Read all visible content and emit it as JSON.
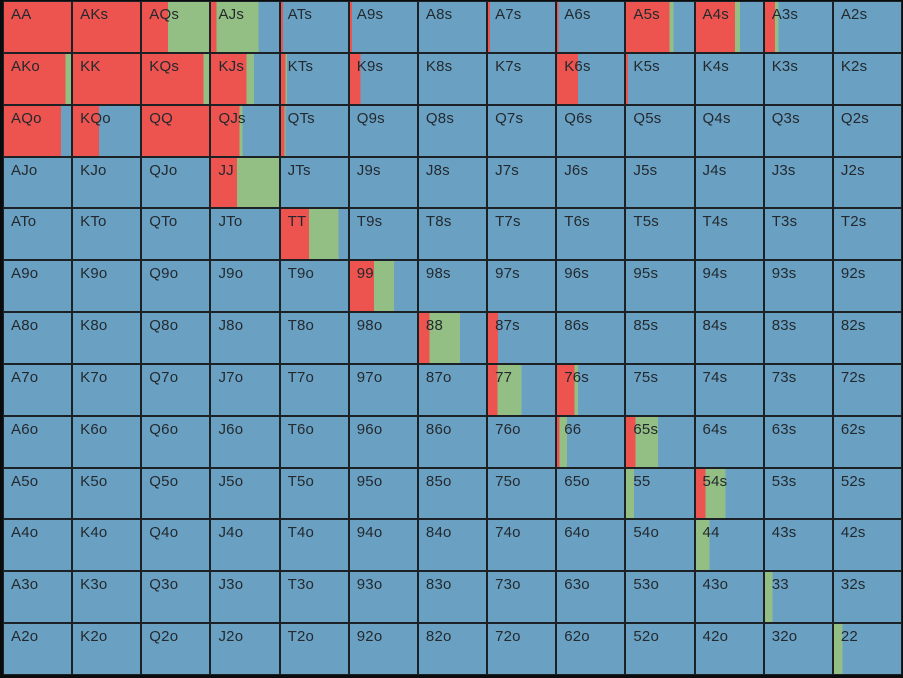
{
  "app": {
    "description": "13x13 poker starting-hand range matrix; each cell background is split left-to-right into raise (red), call (green) and fold (blue) portions"
  },
  "chart_data": {
    "type": "heatmap",
    "title": "",
    "grid": "13x13 poker hand matrix (pairs on diagonal, suited above, offsuit below)",
    "actions": [
      "raise",
      "call",
      "fold"
    ],
    "colors": {
      "raise": "#ed534f",
      "call": "#94bf84",
      "fold": "#6aa1c3"
    },
    "grid_line_color": "#1c2126",
    "cell_format": [
      "hand",
      "raise_pct",
      "call_pct",
      "fold_pct"
    ],
    "rows": [
      [
        [
          "AA",
          100,
          0,
          0
        ],
        [
          "AKs",
          100,
          0,
          0
        ],
        [
          "AQs",
          39,
          61,
          0
        ],
        [
          "AJs",
          8,
          62,
          30
        ],
        [
          "ATs",
          3,
          0,
          97
        ],
        [
          "A9s",
          3,
          0,
          97
        ],
        [
          "A8s",
          0,
          0,
          100
        ],
        [
          "A7s",
          3,
          0,
          97
        ],
        [
          "A6s",
          2,
          0,
          98
        ],
        [
          "A5s",
          64,
          6,
          30
        ],
        [
          "A4s",
          58,
          8,
          34
        ],
        [
          "A3s",
          15,
          5,
          80
        ],
        [
          "A2s",
          0,
          0,
          100
        ]
      ],
      [
        [
          "AKo",
          92,
          8,
          0
        ],
        [
          "KK",
          100,
          0,
          0
        ],
        [
          "KQs",
          92,
          8,
          0
        ],
        [
          "KJs",
          52,
          11,
          37
        ],
        [
          "KTs",
          7,
          2,
          91
        ],
        [
          "K9s",
          16,
          0,
          84
        ],
        [
          "K8s",
          0,
          0,
          100
        ],
        [
          "K7s",
          0,
          0,
          100
        ],
        [
          "K6s",
          31,
          0,
          69
        ],
        [
          "K5s",
          3,
          0,
          97
        ],
        [
          "K4s",
          0,
          0,
          100
        ],
        [
          "K3s",
          0,
          0,
          100
        ],
        [
          "K2s",
          0,
          0,
          100
        ]
      ],
      [
        [
          "AQo",
          85,
          0,
          15
        ],
        [
          "KQo",
          39,
          0,
          61
        ],
        [
          "QQ",
          100,
          0,
          0
        ],
        [
          "QJs",
          42,
          4,
          54
        ],
        [
          "QTs",
          5,
          2,
          93
        ],
        [
          "Q9s",
          0,
          0,
          100
        ],
        [
          "Q8s",
          0,
          0,
          100
        ],
        [
          "Q7s",
          0,
          0,
          100
        ],
        [
          "Q6s",
          0,
          0,
          100
        ],
        [
          "Q5s",
          0,
          0,
          100
        ],
        [
          "Q4s",
          0,
          0,
          100
        ],
        [
          "Q3s",
          0,
          0,
          100
        ],
        [
          "Q2s",
          0,
          0,
          100
        ]
      ],
      [
        [
          "AJo",
          0,
          0,
          100
        ],
        [
          "KJo",
          0,
          0,
          100
        ],
        [
          "QJo",
          0,
          0,
          100
        ],
        [
          "JJ",
          38,
          62,
          0
        ],
        [
          "JTs",
          0,
          0,
          100
        ],
        [
          "J9s",
          0,
          0,
          100
        ],
        [
          "J8s",
          0,
          0,
          100
        ],
        [
          "J7s",
          0,
          0,
          100
        ],
        [
          "J6s",
          0,
          0,
          100
        ],
        [
          "J5s",
          0,
          0,
          100
        ],
        [
          "J4s",
          0,
          0,
          100
        ],
        [
          "J3s",
          0,
          0,
          100
        ],
        [
          "J2s",
          0,
          0,
          100
        ]
      ],
      [
        [
          "ATo",
          0,
          0,
          100
        ],
        [
          "KTo",
          0,
          0,
          100
        ],
        [
          "QTo",
          0,
          0,
          100
        ],
        [
          "JTo",
          0,
          0,
          100
        ],
        [
          "TT",
          42,
          44,
          14
        ],
        [
          "T9s",
          0,
          0,
          100
        ],
        [
          "T8s",
          0,
          0,
          100
        ],
        [
          "T7s",
          0,
          0,
          100
        ],
        [
          "T6s",
          0,
          0,
          100
        ],
        [
          "T5s",
          0,
          0,
          100
        ],
        [
          "T4s",
          0,
          0,
          100
        ],
        [
          "T3s",
          0,
          0,
          100
        ],
        [
          "T2s",
          0,
          0,
          100
        ]
      ],
      [
        [
          "A9o",
          0,
          0,
          100
        ],
        [
          "K9o",
          0,
          0,
          100
        ],
        [
          "Q9o",
          0,
          0,
          100
        ],
        [
          "J9o",
          0,
          0,
          100
        ],
        [
          "T9o",
          0,
          0,
          100
        ],
        [
          "99",
          36,
          30,
          34
        ],
        [
          "98s",
          0,
          0,
          100
        ],
        [
          "97s",
          0,
          0,
          100
        ],
        [
          "96s",
          0,
          0,
          100
        ],
        [
          "95s",
          0,
          0,
          100
        ],
        [
          "94s",
          0,
          0,
          100
        ],
        [
          "93s",
          0,
          0,
          100
        ],
        [
          "92s",
          0,
          0,
          100
        ]
      ],
      [
        [
          "A8o",
          0,
          0,
          100
        ],
        [
          "K8o",
          0,
          0,
          100
        ],
        [
          "Q8o",
          0,
          0,
          100
        ],
        [
          "J8o",
          0,
          0,
          100
        ],
        [
          "T8o",
          0,
          0,
          100
        ],
        [
          "98o",
          0,
          0,
          100
        ],
        [
          "88",
          16,
          45,
          39
        ],
        [
          "87s",
          15,
          0,
          85
        ],
        [
          "86s",
          0,
          0,
          100
        ],
        [
          "85s",
          0,
          0,
          100
        ],
        [
          "84s",
          0,
          0,
          100
        ],
        [
          "83s",
          0,
          0,
          100
        ],
        [
          "82s",
          0,
          0,
          100
        ]
      ],
      [
        [
          "A7o",
          0,
          0,
          100
        ],
        [
          "K7o",
          0,
          0,
          100
        ],
        [
          "Q7o",
          0,
          0,
          100
        ],
        [
          "J7o",
          0,
          0,
          100
        ],
        [
          "T7o",
          0,
          0,
          100
        ],
        [
          "97o",
          0,
          0,
          100
        ],
        [
          "87o",
          0,
          0,
          100
        ],
        [
          "77",
          14,
          36,
          50
        ],
        [
          "76s",
          26,
          5,
          69
        ],
        [
          "75s",
          0,
          0,
          100
        ],
        [
          "74s",
          0,
          0,
          100
        ],
        [
          "73s",
          0,
          0,
          100
        ],
        [
          "72s",
          0,
          0,
          100
        ]
      ],
      [
        [
          "A6o",
          0,
          0,
          100
        ],
        [
          "K6o",
          0,
          0,
          100
        ],
        [
          "Q6o",
          0,
          0,
          100
        ],
        [
          "J6o",
          0,
          0,
          100
        ],
        [
          "T6o",
          0,
          0,
          100
        ],
        [
          "96o",
          0,
          0,
          100
        ],
        [
          "86o",
          0,
          0,
          100
        ],
        [
          "76o",
          0,
          0,
          100
        ],
        [
          "66",
          4,
          11,
          85
        ],
        [
          "65s",
          14,
          33,
          53
        ],
        [
          "64s",
          0,
          0,
          100
        ],
        [
          "63s",
          0,
          0,
          100
        ],
        [
          "62s",
          0,
          0,
          100
        ]
      ],
      [
        [
          "A5o",
          0,
          0,
          100
        ],
        [
          "K5o",
          0,
          0,
          100
        ],
        [
          "Q5o",
          0,
          0,
          100
        ],
        [
          "J5o",
          0,
          0,
          100
        ],
        [
          "T5o",
          0,
          0,
          100
        ],
        [
          "95o",
          0,
          0,
          100
        ],
        [
          "85o",
          0,
          0,
          100
        ],
        [
          "75o",
          0,
          0,
          100
        ],
        [
          "65o",
          0,
          0,
          100
        ],
        [
          "55",
          0,
          12,
          88
        ],
        [
          "54s",
          14,
          30,
          56
        ],
        [
          "53s",
          0,
          0,
          100
        ],
        [
          "52s",
          0,
          0,
          100
        ]
      ],
      [
        [
          "A4o",
          0,
          0,
          100
        ],
        [
          "K4o",
          0,
          0,
          100
        ],
        [
          "Q4o",
          0,
          0,
          100
        ],
        [
          "J4o",
          0,
          0,
          100
        ],
        [
          "T4o",
          0,
          0,
          100
        ],
        [
          "94o",
          0,
          0,
          100
        ],
        [
          "84o",
          0,
          0,
          100
        ],
        [
          "74o",
          0,
          0,
          100
        ],
        [
          "64o",
          0,
          0,
          100
        ],
        [
          "54o",
          0,
          0,
          100
        ],
        [
          "44",
          0,
          20,
          80
        ],
        [
          "43s",
          0,
          0,
          100
        ],
        [
          "42s",
          0,
          0,
          100
        ]
      ],
      [
        [
          "A3o",
          0,
          0,
          100
        ],
        [
          "K3o",
          0,
          0,
          100
        ],
        [
          "Q3o",
          0,
          0,
          100
        ],
        [
          "J3o",
          0,
          0,
          100
        ],
        [
          "T3o",
          0,
          0,
          100
        ],
        [
          "93o",
          0,
          0,
          100
        ],
        [
          "83o",
          0,
          0,
          100
        ],
        [
          "73o",
          0,
          0,
          100
        ],
        [
          "63o",
          0,
          0,
          100
        ],
        [
          "53o",
          0,
          0,
          100
        ],
        [
          "43o",
          0,
          0,
          100
        ],
        [
          "33",
          0,
          11,
          89
        ],
        [
          "32s",
          0,
          0,
          100
        ]
      ],
      [
        [
          "A2o",
          0,
          0,
          100
        ],
        [
          "K2o",
          0,
          0,
          100
        ],
        [
          "Q2o",
          0,
          0,
          100
        ],
        [
          "J2o",
          0,
          0,
          100
        ],
        [
          "T2o",
          0,
          0,
          100
        ],
        [
          "92o",
          0,
          0,
          100
        ],
        [
          "82o",
          0,
          0,
          100
        ],
        [
          "72o",
          0,
          0,
          100
        ],
        [
          "62o",
          0,
          0,
          100
        ],
        [
          "52o",
          0,
          0,
          100
        ],
        [
          "42o",
          0,
          0,
          100
        ],
        [
          "32o",
          0,
          0,
          100
        ],
        [
          "22",
          0,
          13,
          87
        ]
      ]
    ]
  }
}
